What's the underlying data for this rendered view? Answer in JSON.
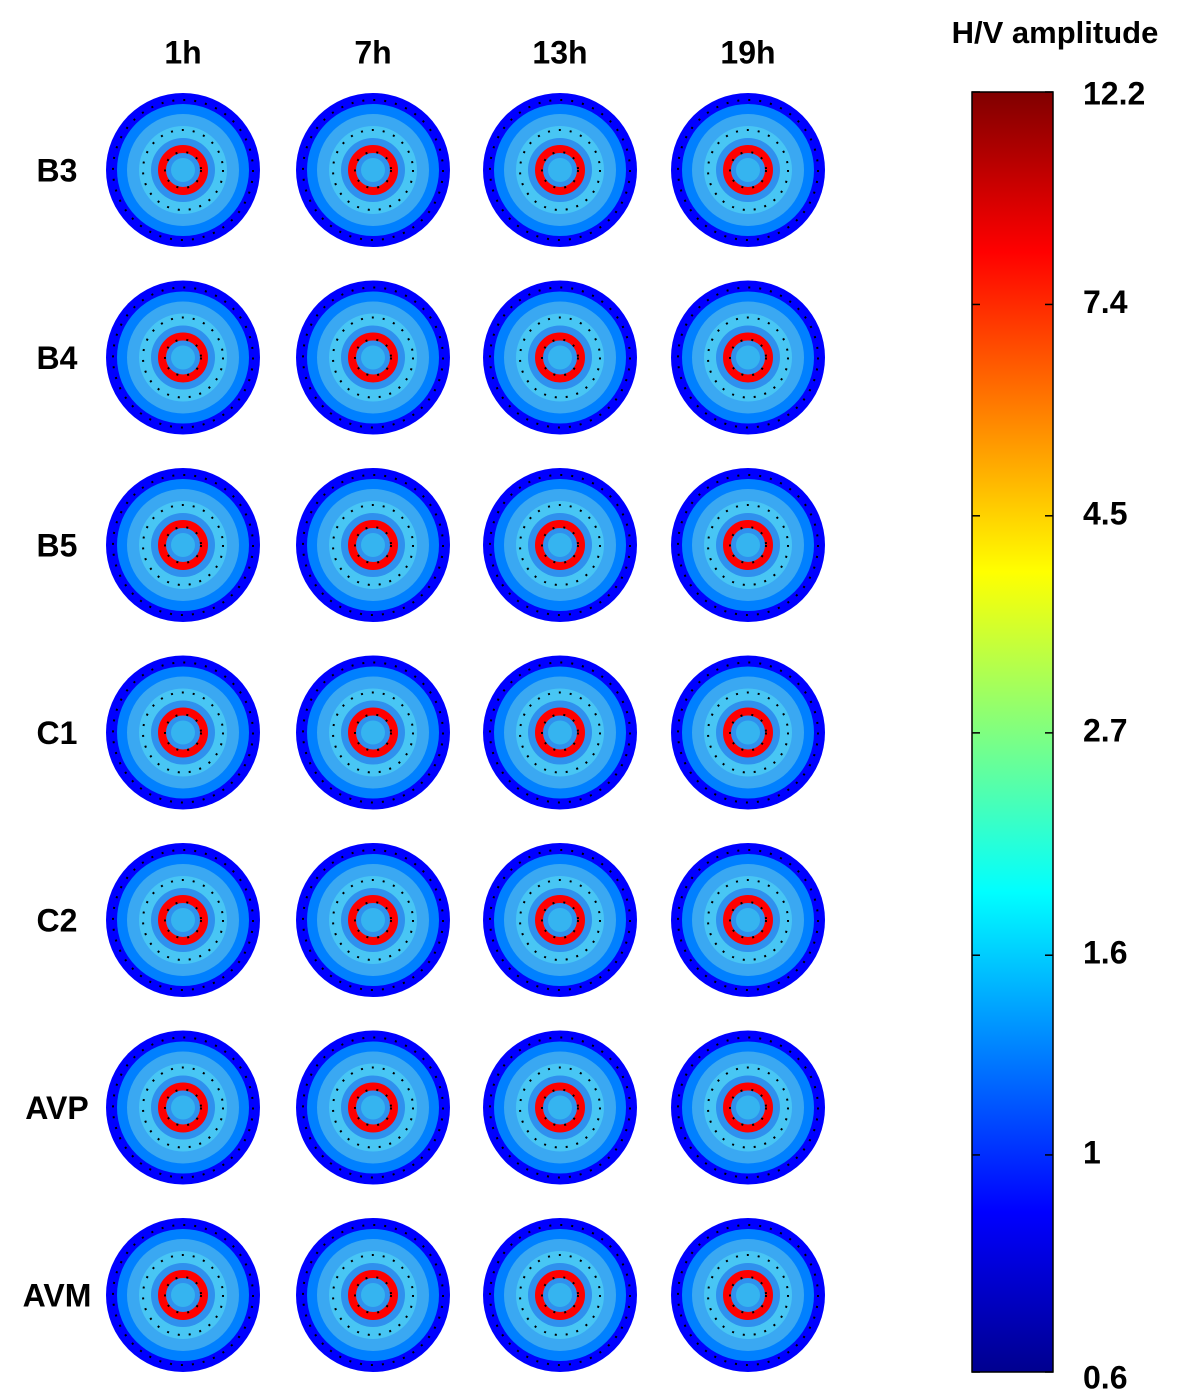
{
  "chart_data": {
    "type": "polar-heatmap-grid",
    "columns": [
      "1h",
      "7h",
      "13h",
      "19h"
    ],
    "rows": [
      "B3",
      "B4",
      "B5",
      "C1",
      "C2",
      "AVP",
      "AVM"
    ],
    "colorbar": {
      "title": "H/V amplitude",
      "colormap": "jet",
      "scale": "log",
      "lim": [
        0.6,
        12.2
      ],
      "ticks": [
        12.2,
        7.4,
        4.5,
        2.7,
        1.6,
        1,
        0.6
      ]
    }
  }
}
